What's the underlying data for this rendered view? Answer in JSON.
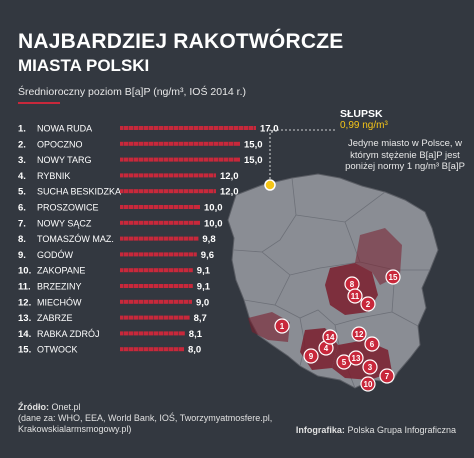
{
  "header": {
    "title_line1": "NAJBARDZIEJ RAKOTWÓRCZE",
    "title_line2": "MIASTA POLSKI",
    "subtitle": "Średnioroczny poziom B[a]P (ng/m³, IOŚ 2014 r.)"
  },
  "colors": {
    "background": "#333840",
    "bar": "#c8283b",
    "map_fill": "#8a8d94",
    "region_highlight": "#7a1f2e",
    "marker": "#c8283b",
    "slupsk_marker": "#f5c518"
  },
  "chart_data": {
    "type": "bar",
    "orientation": "horizontal",
    "title": "NAJBARDZIEJ RAKOTWÓRCZE MIASTA POLSKI",
    "subtitle": "Średnioroczny poziom B[a]P (ng/m³, IOŚ 2014 r.)",
    "ranks": [
      "1.",
      "2.",
      "3.",
      "4.",
      "5.",
      "6.",
      "7.",
      "8.",
      "9.",
      "10.",
      "11.",
      "12.",
      "13.",
      "14.",
      "15."
    ],
    "categories": [
      "NOWA RUDA",
      "OPOCZNO",
      "NOWY TARG",
      "RYBNIK",
      "SUCHA BESKIDZKA",
      "PROSZOWICE",
      "NOWY SĄCZ",
      "TOMASZÓW MAZ.",
      "GODÓW",
      "ZAKOPANE",
      "BRZEZINY",
      "MIECHÓW",
      "ZABRZE",
      "RABKA ZDRÓJ",
      "OTWOCK"
    ],
    "values": [
      17.0,
      15.0,
      15.0,
      12.0,
      12.0,
      10.0,
      10.0,
      9.8,
      9.6,
      9.1,
      9.1,
      9.0,
      8.7,
      8.1,
      8.0
    ],
    "value_labels": [
      "17,0",
      "15,0",
      "15,0",
      "12,0",
      "12,0",
      "10,0",
      "10,0",
      "9,8",
      "9,6",
      "9,1",
      "9,1",
      "9,0",
      "8,7",
      "8,1",
      "8,0"
    ],
    "xlim": [
      0,
      17
    ]
  },
  "map": {
    "markers": [
      "1",
      "2",
      "3",
      "4",
      "5",
      "6",
      "7",
      "8",
      "9",
      "10",
      "11",
      "12",
      "13",
      "14",
      "15"
    ]
  },
  "callout": {
    "city": "SŁUPSK",
    "value": "0,99 ng/m³",
    "description": "Jedyne miasto w Polsce, w którym stężenie B[a]P jest poniżej normy 1 ng/m³ B[a]P"
  },
  "footer": {
    "source_label": "Źródło:",
    "source_main": "Onet.pl",
    "source_line2": "(dane za: WHO, EEA, World Bank, IOŚ, Tworzymyatmosfere.pl,",
    "source_line3": "Krakowskialarmsmogowy.pl)",
    "infografika_label": "Infografika:",
    "infografika_value": "Polska Grupa Infograficzna"
  }
}
